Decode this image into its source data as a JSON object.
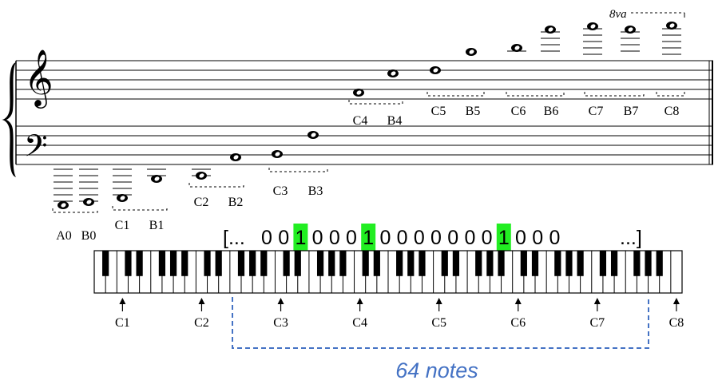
{
  "staff_labels": [
    {
      "name": "A0",
      "pair": "B0"
    },
    {
      "name": "C1",
      "pair": "B1"
    },
    {
      "name": "C2",
      "pair": "B2"
    },
    {
      "name": "C3",
      "pair": "B3"
    },
    {
      "name": "C4",
      "pair": "B4"
    },
    {
      "name": "C5",
      "pair": "B5"
    },
    {
      "name": "C6",
      "pair": "B6"
    },
    {
      "name": "C7",
      "pair": "B7"
    },
    {
      "name": "C8"
    }
  ],
  "ottava": "8va",
  "vector": {
    "open": "[...",
    "close": "...]",
    "bits": [
      0,
      0,
      1,
      0,
      0,
      0,
      1,
      0,
      0,
      0,
      0,
      0,
      0,
      0,
      1,
      0,
      0,
      0
    ],
    "highlight_color": "#22ee22"
  },
  "keyboard_markers": [
    "C1",
    "C2",
    "C3",
    "C4",
    "C5",
    "C6",
    "C7",
    "C8"
  ],
  "range_label": "64 notes",
  "range_color": "#4472c4"
}
